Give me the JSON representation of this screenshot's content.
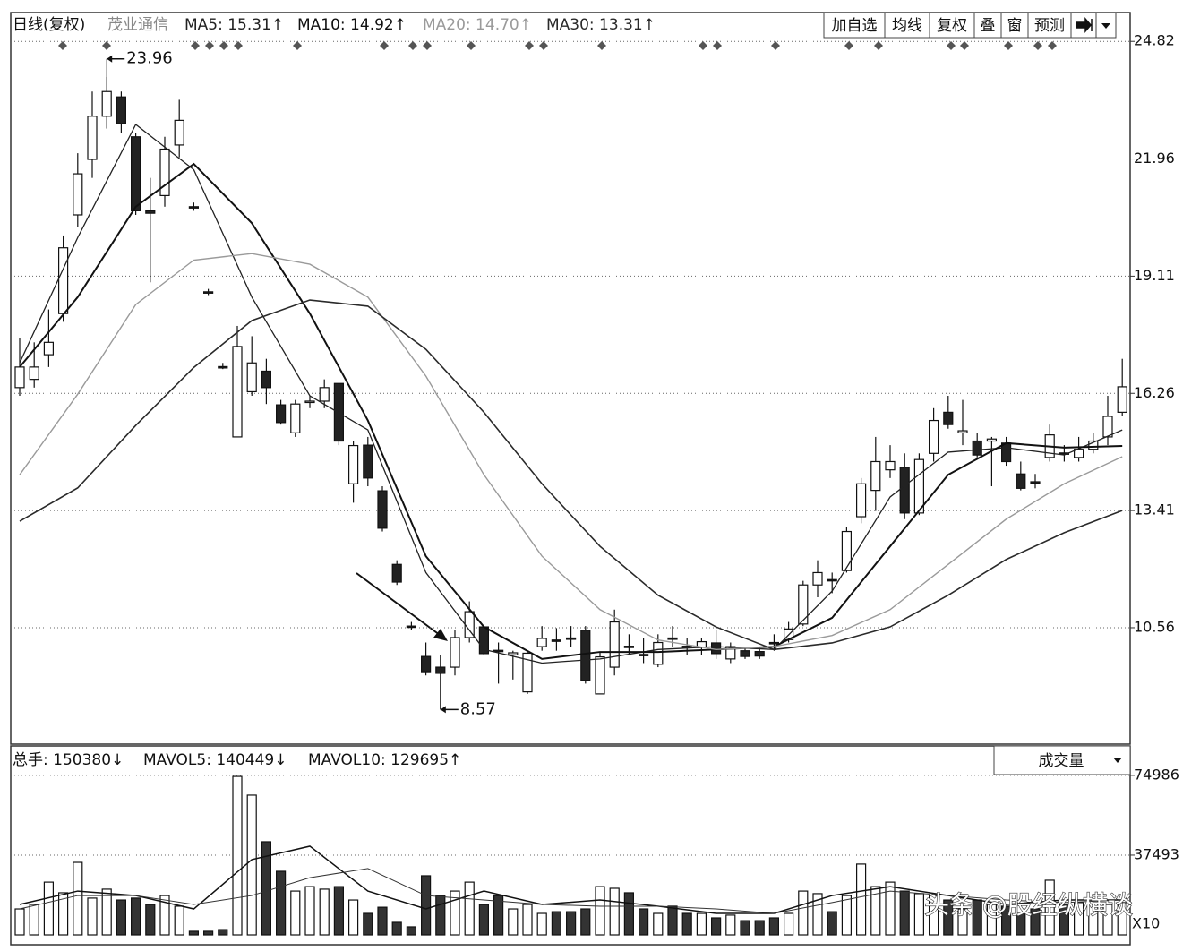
{
  "toolbar": [
    "加自选",
    "均线",
    "复权",
    "叠",
    "窗",
    "预测"
  ],
  "watermark": "头条 @股经纵横谈",
  "chart_data": [
    {
      "type": "candlestick",
      "title": "日线(复权)",
      "stock": "茂业通信",
      "ylim": [
        7.75,
        25.5
      ],
      "yticks": [
        10.56,
        13.41,
        16.26,
        19.11,
        21.96,
        24.82
      ],
      "grid": true,
      "candles": {
        "open": [
          16.4,
          16.6,
          17.2,
          18.2,
          20.6,
          21.95,
          23.0,
          23.47,
          22.5,
          20.7,
          21.07,
          22.3,
          20.8,
          18.73,
          16.91,
          15.2,
          16.3,
          16.8,
          15.98,
          15.3,
          16.06,
          16.07,
          16.5,
          14.06,
          15.0,
          13.89,
          12.1,
          10.6,
          9.86,
          9.6,
          9.6,
          10.32,
          10.58,
          10.01,
          9.9,
          9.0,
          10.1,
          10.26,
          10.31,
          10.5,
          8.95,
          9.6,
          10.11,
          9.91,
          9.67,
          10.31,
          10.11,
          10.08,
          10.19,
          9.8,
          10.0,
          9.98,
          10.2,
          10.27,
          10.65,
          11.6,
          11.73,
          11.95,
          13.26,
          13.9,
          14.4,
          14.46,
          13.35,
          14.8,
          15.8,
          15.3,
          15.1,
          15.1,
          15.05,
          14.3,
          14.11,
          14.7,
          14.81,
          14.7,
          14.9,
          15.2,
          15.8
        ],
        "high": [
          17.6,
          17.5,
          18.3,
          20.1,
          22.1,
          23.6,
          23.96,
          23.6,
          22.6,
          21.5,
          22.5,
          23.4,
          20.9,
          18.8,
          17.0,
          17.9,
          17.65,
          17.1,
          16.1,
          16.1,
          16.2,
          16.6,
          16.5,
          15.1,
          15.2,
          14.0,
          12.2,
          10.7,
          10.2,
          9.9,
          10.5,
          11.2,
          10.6,
          10.2,
          10.0,
          10.0,
          10.6,
          10.55,
          10.6,
          10.6,
          9.95,
          11.0,
          10.4,
          10.3,
          10.4,
          10.6,
          10.3,
          10.3,
          10.5,
          10.2,
          10.1,
          10.1,
          10.4,
          10.7,
          11.7,
          12.2,
          11.9,
          13.0,
          14.2,
          15.2,
          15.0,
          14.8,
          14.8,
          15.9,
          16.2,
          16.1,
          15.3,
          15.2,
          15.2,
          14.6,
          14.3,
          15.5,
          15.0,
          15.2,
          15.3,
          16.2,
          17.1
        ],
        "low": [
          16.2,
          16.4,
          16.9,
          18.0,
          20.3,
          21.5,
          22.7,
          22.6,
          20.6,
          18.96,
          20.8,
          22.0,
          20.7,
          18.65,
          16.85,
          15.2,
          16.2,
          16.0,
          15.5,
          15.2,
          15.9,
          15.9,
          15.0,
          13.6,
          14.0,
          12.9,
          11.6,
          10.5,
          9.4,
          8.57,
          9.4,
          10.2,
          9.9,
          9.2,
          9.3,
          8.95,
          10.0,
          10.0,
          10.1,
          9.2,
          8.95,
          9.4,
          9.9,
          9.7,
          9.6,
          10.1,
          9.9,
          9.9,
          9.8,
          9.7,
          9.8,
          9.8,
          10.0,
          10.2,
          10.6,
          11.3,
          11.4,
          11.9,
          13.1,
          13.4,
          14.2,
          13.2,
          13.3,
          14.6,
          15.4,
          15.0,
          14.7,
          14.0,
          14.5,
          13.9,
          13.95,
          14.6,
          14.6,
          14.6,
          14.8,
          15.0,
          15.7
        ],
        "close": [
          16.9,
          16.9,
          17.5,
          19.8,
          21.6,
          23.0,
          23.6,
          22.82,
          20.7,
          20.64,
          22.2,
          22.9,
          20.77,
          18.72,
          16.9,
          17.4,
          17.0,
          16.4,
          15.55,
          16.0,
          16.07,
          16.4,
          15.1,
          14.99,
          14.2,
          12.98,
          11.67,
          10.57,
          9.49,
          9.45,
          10.32,
          10.95,
          9.93,
          10.0,
          9.95,
          9.94,
          10.3,
          10.25,
          10.3,
          9.28,
          9.85,
          10.7,
          10.1,
          9.9,
          10.2,
          10.3,
          10.1,
          10.22,
          9.93,
          10.1,
          9.86,
          9.87,
          10.19,
          10.53,
          11.6,
          11.9,
          11.72,
          12.9,
          14.06,
          14.6,
          14.6,
          13.35,
          14.65,
          15.6,
          15.5,
          15.35,
          14.76,
          15.15,
          14.6,
          13.95,
          14.1,
          15.25,
          14.8,
          14.9,
          15.1,
          15.7,
          16.42
        ]
      },
      "ma_index": [
        0,
        4,
        8,
        12,
        16,
        20,
        24,
        28,
        32,
        36,
        40,
        44,
        48,
        52,
        56,
        60,
        64,
        68,
        72,
        76
      ],
      "series": [
        {
          "name": "MA5",
          "legend": "MA5: 15.31↑",
          "color": "#222222",
          "width": 1.3,
          "values": [
            17.0,
            20.05,
            22.8,
            21.7,
            18.6,
            16.2,
            15.37,
            11.9,
            10.03,
            9.7,
            9.8,
            10.03,
            10.1,
            10.03,
            11.45,
            13.74,
            14.83,
            14.94,
            14.76,
            15.37
          ]
        },
        {
          "name": "MA10",
          "legend": "MA10: 14.92↑",
          "color": "#111111",
          "width": 2,
          "values": [
            16.9,
            18.6,
            20.8,
            21.84,
            20.4,
            18.2,
            15.6,
            12.3,
            10.58,
            9.8,
            9.97,
            9.97,
            10.03,
            10.1,
            10.8,
            12.54,
            14.28,
            15.05,
            14.94,
            14.98
          ]
        },
        {
          "name": "MA20",
          "legend": "MA20: 14.70↑",
          "color": "#9a9a9a",
          "width": 1.4,
          "values": [
            14.28,
            16.24,
            18.42,
            19.5,
            19.66,
            19.4,
            18.6,
            16.68,
            14.28,
            12.3,
            11.0,
            10.26,
            10.03,
            10.1,
            10.37,
            11.0,
            12.1,
            13.2,
            14.06,
            14.72
          ]
        },
        {
          "name": "MA30",
          "legend": "MA30: 13.31↑",
          "color": "#2a2a2a",
          "width": 1.6,
          "values": [
            13.15,
            13.96,
            15.48,
            16.89,
            18.03,
            18.53,
            18.38,
            17.33,
            15.8,
            14.06,
            12.54,
            11.35,
            10.58,
            10.03,
            10.19,
            10.58,
            11.35,
            12.22,
            12.87,
            13.41
          ]
        }
      ],
      "annotations": [
        {
          "value": 23.96,
          "index": 6
        },
        {
          "value": 8.57,
          "index": 29
        }
      ]
    },
    {
      "type": "bar",
      "legends": [
        "总手: 150380↓",
        "MAVOL5: 140449↓",
        "MAVOL10: 129695↑"
      ],
      "selector": "成交量",
      "unit": "X10",
      "ylim": [
        0,
        88000
      ],
      "yticks": [
        37493,
        74986
      ],
      "grid": true,
      "values": [
        12200,
        14300,
        24800,
        19800,
        34100,
        17300,
        21500,
        16400,
        17300,
        14300,
        18500,
        13500,
        1700,
        1700,
        2500,
        74500,
        65700,
        43800,
        29900,
        20600,
        22700,
        21500,
        22700,
        16400,
        10100,
        13000,
        5900,
        3800,
        27800,
        18500,
        20600,
        24800,
        14300,
        18500,
        12200,
        14300,
        10100,
        10900,
        10900,
        12200,
        22700,
        21900,
        19800,
        12200,
        10100,
        13500,
        10100,
        10100,
        8000,
        9300,
        6700,
        6700,
        8000,
        10100,
        20600,
        19400,
        10900,
        18500,
        33300,
        22700,
        24800,
        20600,
        19400,
        18500,
        16400,
        12200,
        16400,
        14300,
        13500,
        10100,
        12200,
        25700,
        14300,
        15200,
        16400,
        14300,
        15200
      ],
      "ma_index": [
        0,
        4,
        8,
        12,
        16,
        20,
        24,
        28,
        32,
        36,
        40,
        44,
        48,
        52,
        56,
        60,
        64,
        68,
        72,
        76
      ],
      "series": [
        {
          "name": "MAVOL5",
          "color": "#111111",
          "width": 1.5,
          "values": [
            14300,
            20600,
            18500,
            12200,
            35400,
            41700,
            20600,
            12200,
            20600,
            14300,
            16400,
            13500,
            10100,
            10100,
            18500,
            22700,
            18500,
            14300,
            16400,
            16400
          ]
        },
        {
          "name": "MAVOL10",
          "color": "#333333",
          "width": 1,
          "values": [
            12200,
            18500,
            18500,
            14300,
            18500,
            26900,
            31200,
            18500,
            16400,
            14300,
            13500,
            13500,
            12200,
            10100,
            15200,
            20600,
            18500,
            16400,
            15200,
            16400
          ]
        }
      ]
    }
  ]
}
